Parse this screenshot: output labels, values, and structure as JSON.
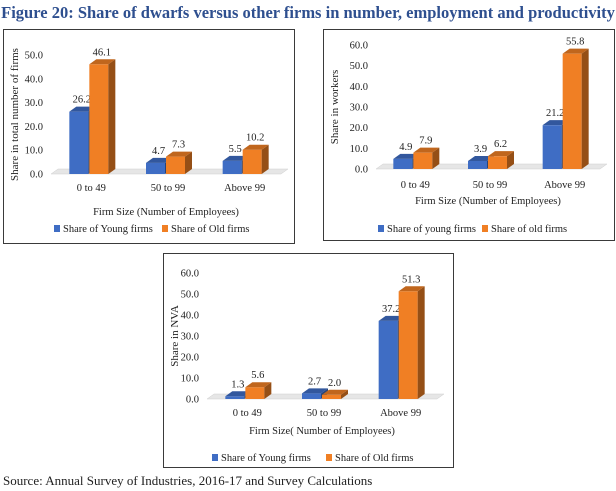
{
  "figure_title": "Figure 20: Share of dwarfs versus other firms in number, employment and productivity",
  "source": "Source: Annual Survey of Industries, 2016-17 and Survey Calculations",
  "colors": {
    "young": "#3f6dc4",
    "old": "#f07f24",
    "title": "#2e4f8f"
  },
  "chart_data": [
    {
      "type": "bar",
      "title": "",
      "categories": [
        "0 to 49",
        "50 to 99",
        "Above 99"
      ],
      "series": [
        {
          "name": "Share of Young firms",
          "values": [
            26.2,
            4.7,
            5.5
          ]
        },
        {
          "name": "Share of Old firms",
          "values": [
            46.1,
            7.3,
            10.2
          ]
        }
      ],
      "xlabel": "Firm Size (Number of Employees)",
      "ylabel": "Share in total number of firms",
      "ylim": [
        0,
        50
      ],
      "yticks": [
        "0.0",
        "10.0",
        "20.0",
        "30.0",
        "40.0",
        "50.0"
      ],
      "value_labels": [
        [
          "26.2",
          "4.7",
          "5.5"
        ],
        [
          "46.1",
          "7.3",
          "10.2"
        ]
      ],
      "legend": "bottom"
    },
    {
      "type": "bar",
      "title": "",
      "categories": [
        "0 to 49",
        "50 to 99",
        "Above 99"
      ],
      "series": [
        {
          "name": "Share of young firms",
          "values": [
            4.9,
            3.9,
            21.2
          ]
        },
        {
          "name": "Share of old firms",
          "values": [
            7.9,
            6.2,
            55.8
          ]
        }
      ],
      "xlabel": "Firm Size (Number of Employees)",
      "ylabel": "Share in workers",
      "ylim": [
        0,
        60
      ],
      "yticks": [
        "0.0",
        "10.0",
        "20.0",
        "30.0",
        "40.0",
        "50.0",
        "60.0"
      ],
      "value_labels": [
        [
          "4.9",
          "3.9",
          "21.2"
        ],
        [
          "7.9",
          "6.2",
          "55.8"
        ]
      ],
      "legend": "bottom"
    },
    {
      "type": "bar",
      "title": "",
      "categories": [
        "0 to 49",
        "50 to 99",
        "Above 99"
      ],
      "series": [
        {
          "name": "Share of Young firms",
          "values": [
            1.3,
            2.7,
            37.2
          ]
        },
        {
          "name": "Share of Old firms",
          "values": [
            5.6,
            2.0,
            51.3
          ]
        }
      ],
      "xlabel": "Firm Size( Number of Employees)",
      "ylabel": "Share in NVA",
      "ylim": [
        0,
        60
      ],
      "yticks": [
        "0.0",
        "10.0",
        "20.0",
        "30.0",
        "40.0",
        "50.0",
        "60.0"
      ],
      "value_labels": [
        [
          "1.3",
          "2.7",
          "37.2"
        ],
        [
          "5.6",
          "2.0",
          "51.3"
        ]
      ],
      "legend": "bottom"
    }
  ]
}
